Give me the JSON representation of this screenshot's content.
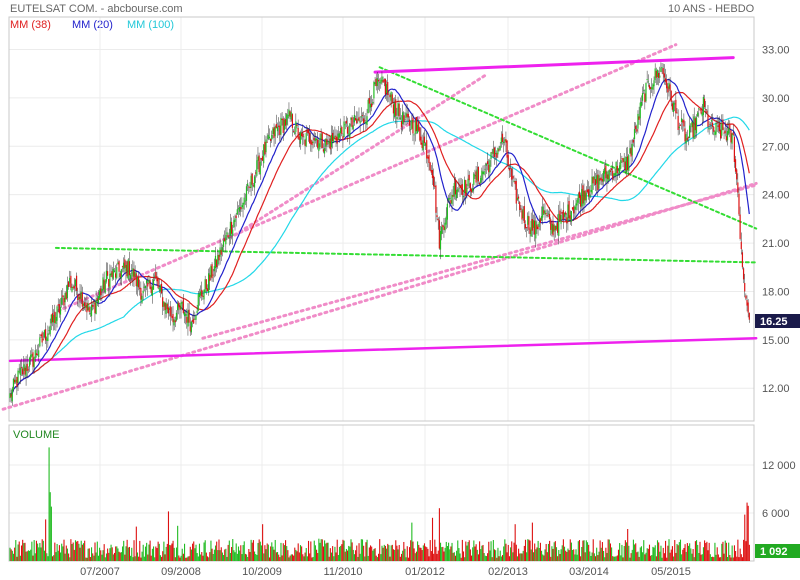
{
  "header": {
    "title": "EUTELSAT COM. - abcbourse.com",
    "period": "10 ANS - HEBDO"
  },
  "legend": [
    {
      "label": "MM (38)",
      "color": "#e02020"
    },
    {
      "label": "MM (20)",
      "color": "#2222cc"
    },
    {
      "label": "MM (100)",
      "color": "#22d8e8"
    }
  ],
  "colors": {
    "up": "#22bb22",
    "down": "#dd1111",
    "trendline": "#ee22ee",
    "channel": "#f08cc8",
    "green_line": "#33dd33",
    "last_price_bg": "#1a1a4a",
    "last_volume_bg": "#22aa22"
  },
  "chart_data": {
    "type": "candlestick",
    "price_axis": {
      "ticks": [
        "12.00",
        "15.00",
        "18.00",
        "21.00",
        "24.00",
        "27.00",
        "30.00",
        "33.00"
      ],
      "tick_values": [
        12,
        15,
        18,
        21,
        24,
        27,
        30,
        33
      ]
    },
    "x_ticks": [
      "07/2007",
      "09/2008",
      "10/2009",
      "11/2010",
      "01/2012",
      "02/2013",
      "03/2014",
      "05/2015"
    ],
    "last_price": "16.25",
    "volume": {
      "label": "VOLUME",
      "ticks": [
        "6 000",
        "12 000"
      ],
      "tick_values": [
        6000,
        12000
      ],
      "last_volume": "1 092"
    },
    "price_anchors": [
      {
        "w": 0,
        "p": 11.5
      },
      {
        "w": 8,
        "p": 12.8
      },
      {
        "w": 20,
        "p": 13.8
      },
      {
        "w": 32,
        "p": 15.5
      },
      {
        "w": 44,
        "p": 17.0
      },
      {
        "w": 52,
        "p": 18.6
      },
      {
        "w": 62,
        "p": 17.8
      },
      {
        "w": 70,
        "p": 16.6
      },
      {
        "w": 84,
        "p": 18.8
      },
      {
        "w": 94,
        "p": 19.2
      },
      {
        "w": 104,
        "p": 19.5
      },
      {
        "w": 116,
        "p": 17.8
      },
      {
        "w": 126,
        "p": 18.8
      },
      {
        "w": 134,
        "p": 17.3
      },
      {
        "w": 142,
        "p": 16.4
      },
      {
        "w": 150,
        "p": 17.0
      },
      {
        "w": 158,
        "p": 16.0
      },
      {
        "w": 164,
        "p": 17.5
      },
      {
        "w": 172,
        "p": 18.5
      },
      {
        "w": 180,
        "p": 19.8
      },
      {
        "w": 192,
        "p": 22.0
      },
      {
        "w": 206,
        "p": 24.0
      },
      {
        "w": 220,
        "p": 26.5
      },
      {
        "w": 232,
        "p": 28.0
      },
      {
        "w": 244,
        "p": 28.8
      },
      {
        "w": 254,
        "p": 27.3
      },
      {
        "w": 264,
        "p": 27.6
      },
      {
        "w": 276,
        "p": 27.1
      },
      {
        "w": 288,
        "p": 27.8
      },
      {
        "w": 298,
        "p": 28.3
      },
      {
        "w": 308,
        "p": 28.7
      },
      {
        "w": 318,
        "p": 30.6
      },
      {
        "w": 326,
        "p": 30.8
      },
      {
        "w": 334,
        "p": 29.6
      },
      {
        "w": 342,
        "p": 28.6
      },
      {
        "w": 352,
        "p": 28.3
      },
      {
        "w": 362,
        "p": 27.0
      },
      {
        "w": 368,
        "p": 25.5
      },
      {
        "w": 374,
        "p": 21.2
      },
      {
        "w": 380,
        "p": 23.0
      },
      {
        "w": 388,
        "p": 24.6
      },
      {
        "w": 398,
        "p": 24.4
      },
      {
        "w": 410,
        "p": 25.2
      },
      {
        "w": 422,
        "p": 26.5
      },
      {
        "w": 430,
        "p": 27.4
      },
      {
        "w": 438,
        "p": 24.5
      },
      {
        "w": 448,
        "p": 22.5
      },
      {
        "w": 458,
        "p": 21.8
      },
      {
        "w": 464,
        "p": 23.0
      },
      {
        "w": 472,
        "p": 21.9
      },
      {
        "w": 482,
        "p": 22.5
      },
      {
        "w": 492,
        "p": 23.4
      },
      {
        "w": 502,
        "p": 24.3
      },
      {
        "w": 512,
        "p": 24.8
      },
      {
        "w": 520,
        "p": 25.3
      },
      {
        "w": 530,
        "p": 25.7
      },
      {
        "w": 538,
        "p": 26.0
      },
      {
        "w": 544,
        "p": 27.6
      },
      {
        "w": 552,
        "p": 30.2
      },
      {
        "w": 560,
        "p": 31.2
      },
      {
        "w": 568,
        "p": 31.8
      },
      {
        "w": 574,
        "p": 30.4
      },
      {
        "w": 582,
        "p": 28.6
      },
      {
        "w": 590,
        "p": 27.4
      },
      {
        "w": 596,
        "p": 28.3
      },
      {
        "w": 604,
        "p": 29.5
      },
      {
        "w": 610,
        "p": 28.1
      },
      {
        "w": 618,
        "p": 27.9
      },
      {
        "w": 624,
        "p": 27.8
      },
      {
        "w": 630,
        "p": 27.4
      },
      {
        "w": 634,
        "p": 24.0
      },
      {
        "w": 638,
        "p": 19.5
      },
      {
        "w": 640,
        "p": 18.0
      },
      {
        "w": 644,
        "p": 16.25
      }
    ],
    "volume_spikes": [
      {
        "w": 34,
        "v": 14200
      },
      {
        "w": 35,
        "v": 8600
      },
      {
        "w": 36,
        "v": 6800
      },
      {
        "w": 31,
        "v": 5200
      },
      {
        "w": 110,
        "v": 4300
      },
      {
        "w": 138,
        "v": 6200
      },
      {
        "w": 146,
        "v": 4400
      },
      {
        "w": 220,
        "v": 4600
      },
      {
        "w": 350,
        "v": 4800
      },
      {
        "w": 368,
        "v": 5400
      },
      {
        "w": 374,
        "v": 6600
      },
      {
        "w": 440,
        "v": 4600
      },
      {
        "w": 455,
        "v": 4800
      },
      {
        "w": 538,
        "v": 4000
      },
      {
        "w": 640,
        "v": 5800
      },
      {
        "w": 642,
        "v": 7300
      },
      {
        "w": 643,
        "v": 6900
      }
    ],
    "lines": {
      "magenta_top": [
        {
          "w": 318,
          "p": 31.6
        },
        {
          "w": 630,
          "p": 32.5
        }
      ],
      "magenta_bottom": [
        {
          "w": 0,
          "p": 13.7
        },
        {
          "w": 650,
          "p": 15.1
        }
      ],
      "pink_outer_top": [
        {
          "w": 42,
          "p": 16.8
        },
        {
          "w": 580,
          "p": 33.3
        }
      ],
      "pink_outer_bottom": [
        {
          "w": -6,
          "p": 10.7
        },
        {
          "w": 650,
          "p": 24.7
        }
      ],
      "pink_inner_top": [
        {
          "w": 196,
          "p": 21.5
        },
        {
          "w": 414,
          "p": 31.4
        }
      ],
      "pink_inner_bottom": [
        {
          "w": 168,
          "p": 15.1
        },
        {
          "w": 650,
          "p": 24.6
        }
      ],
      "green_down": [
        {
          "w": 322,
          "p": 31.9
        },
        {
          "w": 650,
          "p": 21.9
        }
      ],
      "green_flat": [
        {
          "w": 40,
          "p": 20.7
        },
        {
          "w": 650,
          "p": 19.8
        }
      ]
    }
  }
}
